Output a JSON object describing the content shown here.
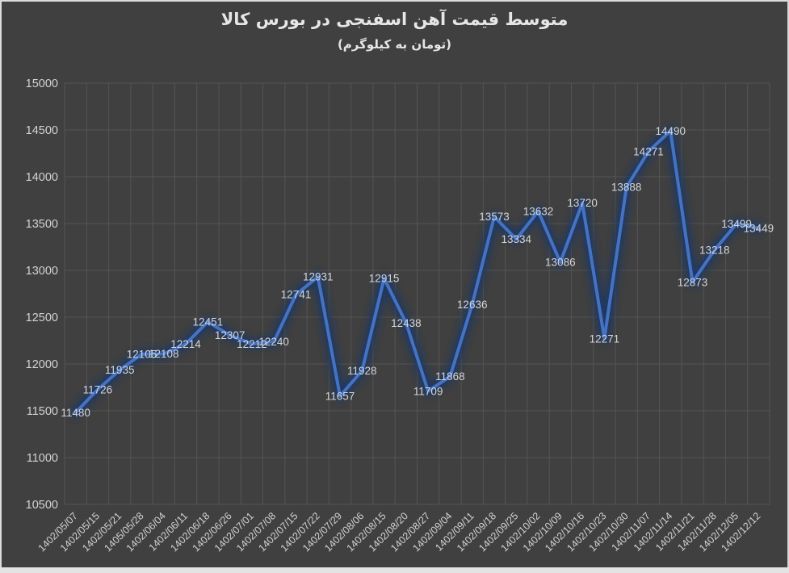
{
  "chart_data": {
    "type": "line",
    "title": "متوسط قیمت آهن اسفنجی در بورس کالا",
    "subtitle": "(تومان به کیلوگرم)",
    "categories": [
      "1402/05/07",
      "1402/05/15",
      "1402/05/21",
      "1405/05/28",
      "1402/06/04",
      "1402/06/11",
      "1402/06/18",
      "1402/06/26",
      "1402/07/01",
      "1402/07/08",
      "1402/07/15",
      "1402/07/22",
      "1402/07/29",
      "1402/08/06",
      "1402/08/15",
      "1402/08/20",
      "1402/08/27",
      "1402/09/04",
      "1402/09/11",
      "1402/09/18",
      "1402/09/25",
      "1402/10/02",
      "1402/10/09",
      "1402/10/16",
      "1402/10/23",
      "1402/10/30",
      "1402/11/07",
      "1402/11/14",
      "1402/11/21",
      "1402/11/28",
      "1402/12/05",
      "1402/12/12"
    ],
    "values": [
      11480,
      11726,
      11935,
      12105,
      12108,
      12214,
      12451,
      12307,
      12212,
      12240,
      12741,
      12931,
      11657,
      11928,
      12915,
      12438,
      11709,
      11868,
      12636,
      13573,
      13334,
      13632,
      13086,
      13720,
      12271,
      13888,
      14271,
      14490,
      12873,
      13218,
      13499,
      13449
    ],
    "xlabel": "",
    "ylabel": "",
    "ylim": [
      10500,
      15000
    ],
    "ytick_step": 500,
    "grid": true,
    "legend_position": "none",
    "data_labels": "center",
    "colors": {
      "line": "#4472C4",
      "glow": "#1C3865",
      "background": "#404040",
      "gridline": "#545454",
      "tick_label": "#d2d2d2",
      "data_label": "#d5d5d5",
      "title": "#e7e7e7",
      "frame_edge": "#dcdcdc"
    }
  }
}
